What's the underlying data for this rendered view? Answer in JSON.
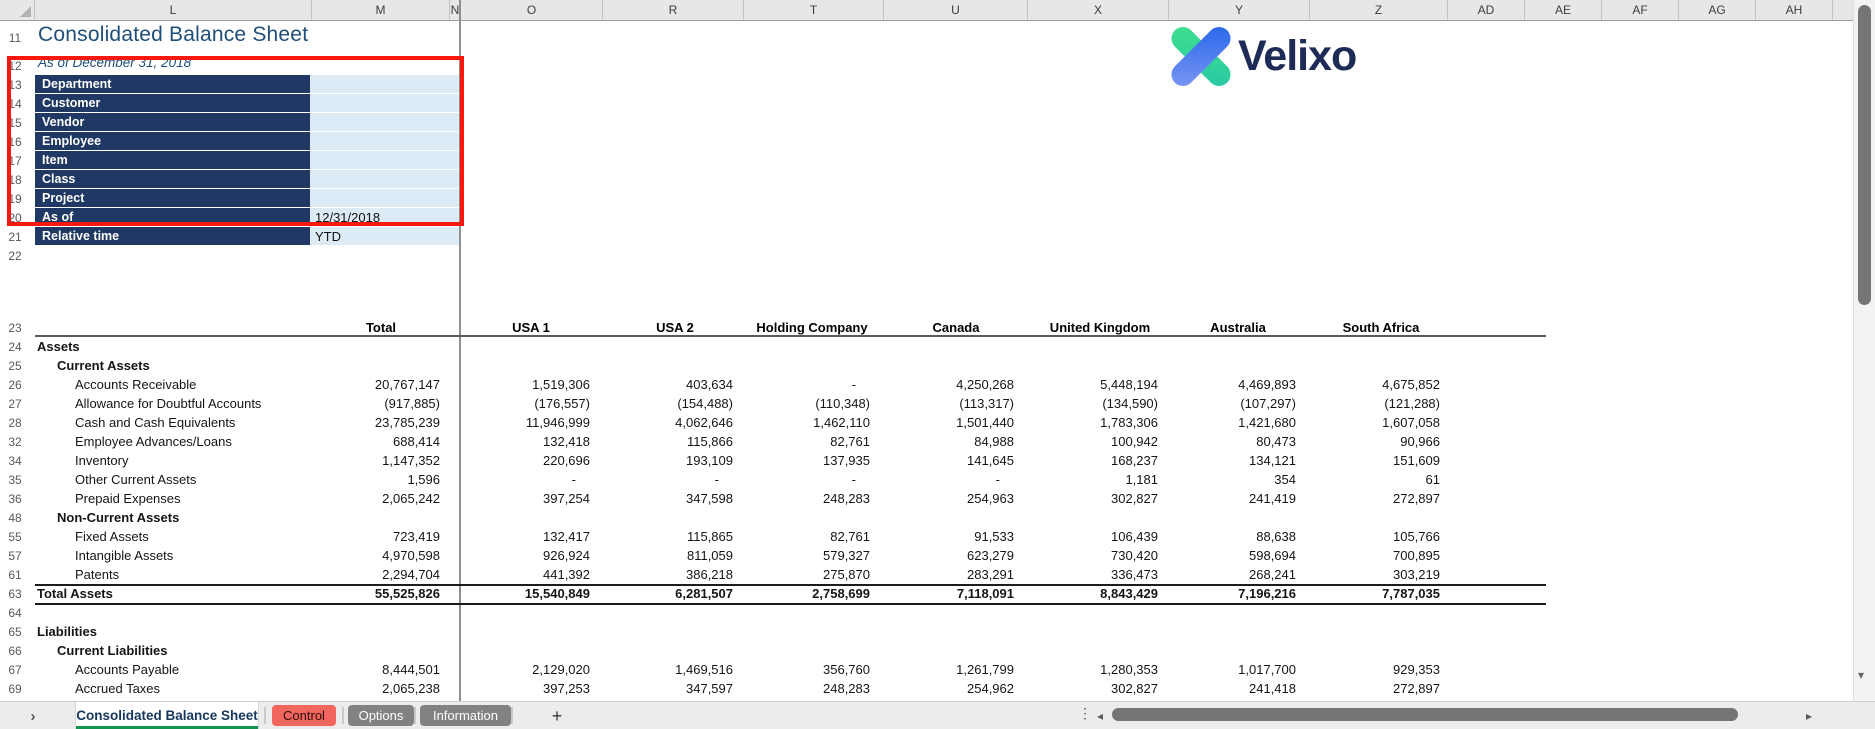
{
  "sheet": {
    "title": "Consolidated Balance Sheet",
    "subtitle": "As of December 31, 2018",
    "logo_text": "Velixo"
  },
  "colors": {
    "field_bar_navy": "#1f3864",
    "field_cell_blue": "#ddebf7",
    "title_blue": "#1f4e79",
    "selection_red": "#f8190c",
    "active_tab_green": "#12934f",
    "control_tab_red": "#f2675d",
    "gray_tab": "#828282",
    "logo_navy": "#1e2b57"
  },
  "column_letters": [
    "L",
    "M",
    "N",
    "O",
    "R",
    "T",
    "U",
    "X",
    "Y",
    "Z",
    "AD",
    "AE",
    "AF",
    "AG",
    "AH"
  ],
  "panel": {
    "row_numbers": [
      "11",
      "12",
      "13",
      "14",
      "15",
      "16",
      "17",
      "18",
      "19",
      "20",
      "21",
      "22"
    ],
    "fields": [
      {
        "label": "Department",
        "value": ""
      },
      {
        "label": "Customer",
        "value": ""
      },
      {
        "label": "Vendor",
        "value": ""
      },
      {
        "label": "Employee",
        "value": ""
      },
      {
        "label": "Item",
        "value": ""
      },
      {
        "label": "Class",
        "value": ""
      },
      {
        "label": "Project",
        "value": ""
      },
      {
        "label": "As of",
        "value": "12/31/2018"
      },
      {
        "label": "Relative time",
        "value": "YTD"
      }
    ]
  },
  "table": {
    "columns": [
      "Total",
      "USA 1",
      "USA 2",
      "Holding Company",
      "Canada",
      "United Kingdom",
      "Australia",
      "South Africa"
    ],
    "rows": [
      {
        "num": "23",
        "type": "colheader"
      },
      {
        "num": "24",
        "label": "Assets",
        "type": "section"
      },
      {
        "num": "25",
        "label": "Current Assets",
        "type": "sub"
      },
      {
        "num": "26",
        "label": "Accounts Receivable",
        "type": "item",
        "values": [
          "20,767,147",
          "1,519,306",
          "403,634",
          "-",
          "4,250,268",
          "5,448,194",
          "4,469,893",
          "4,675,852"
        ]
      },
      {
        "num": "27",
        "label": "Allowance for Doubtful Accounts",
        "type": "item",
        "values": [
          "(917,885)",
          "(176,557)",
          "(154,488)",
          "(110,348)",
          "(113,317)",
          "(134,590)",
          "(107,297)",
          "(121,288)"
        ]
      },
      {
        "num": "28",
        "label": "Cash and Cash Equivalents",
        "type": "item",
        "values": [
          "23,785,239",
          "11,946,999",
          "4,062,646",
          "1,462,110",
          "1,501,440",
          "1,783,306",
          "1,421,680",
          "1,607,058"
        ]
      },
      {
        "num": "32",
        "label": "Employee Advances/Loans",
        "type": "item",
        "values": [
          "688,414",
          "132,418",
          "115,866",
          "82,761",
          "84,988",
          "100,942",
          "80,473",
          "90,966"
        ]
      },
      {
        "num": "34",
        "label": "Inventory",
        "type": "item",
        "values": [
          "1,147,352",
          "220,696",
          "193,109",
          "137,935",
          "141,645",
          "168,237",
          "134,121",
          "151,609"
        ]
      },
      {
        "num": "35",
        "label": "Other Current Assets",
        "type": "item",
        "values": [
          "1,596",
          "-",
          "-",
          "-",
          "-",
          "1,181",
          "354",
          "61"
        ]
      },
      {
        "num": "36",
        "label": "Prepaid Expenses",
        "type": "item",
        "values": [
          "2,065,242",
          "397,254",
          "347,598",
          "248,283",
          "254,963",
          "302,827",
          "241,419",
          "272,897"
        ]
      },
      {
        "num": "48",
        "label": "Non-Current Assets",
        "type": "sub"
      },
      {
        "num": "55",
        "label": "Fixed Assets",
        "type": "item",
        "values": [
          "723,419",
          "132,417",
          "115,865",
          "82,761",
          "91,533",
          "106,439",
          "88,638",
          "105,766"
        ]
      },
      {
        "num": "57",
        "label": "Intangible Assets",
        "type": "item",
        "values": [
          "4,970,598",
          "926,924",
          "811,059",
          "579,327",
          "623,279",
          "730,420",
          "598,694",
          "700,895"
        ]
      },
      {
        "num": "61",
        "label": "Patents",
        "type": "item",
        "values": [
          "2,294,704",
          "441,392",
          "386,218",
          "275,870",
          "283,291",
          "336,473",
          "268,241",
          "303,219"
        ]
      },
      {
        "num": "63",
        "label": "Total Assets",
        "type": "total",
        "values": [
          "55,525,826",
          "15,540,849",
          "6,281,507",
          "2,758,699",
          "7,118,091",
          "8,843,429",
          "7,196,216",
          "7,787,035"
        ]
      },
      {
        "num": "64",
        "type": "blank"
      },
      {
        "num": "65",
        "label": "Liabilities",
        "type": "section"
      },
      {
        "num": "66",
        "label": "Current Liabilities",
        "type": "sub"
      },
      {
        "num": "67",
        "label": "Accounts Payable",
        "type": "item",
        "values": [
          "8,444,501",
          "2,129,020",
          "1,469,516",
          "356,760",
          "1,261,799",
          "1,280,353",
          "1,017,700",
          "929,353"
        ]
      },
      {
        "num": "69",
        "label": "Accrued Taxes",
        "type": "item",
        "values": [
          "2,065,238",
          "397,253",
          "347,597",
          "248,283",
          "254,962",
          "302,827",
          "241,418",
          "272,897"
        ]
      }
    ]
  },
  "tabs": {
    "items": [
      {
        "label": "Consolidated Balance Sheet",
        "style": "active"
      },
      {
        "label": "Control",
        "style": "red"
      },
      {
        "label": "Options",
        "style": "gray"
      },
      {
        "label": "Information",
        "style": "gray"
      }
    ],
    "add_label": "+"
  },
  "icons": {
    "nav_chevron": "›",
    "dots": "⋮",
    "scroll_left": "◂",
    "scroll_right": "▸",
    "scroll_down": "▾"
  }
}
